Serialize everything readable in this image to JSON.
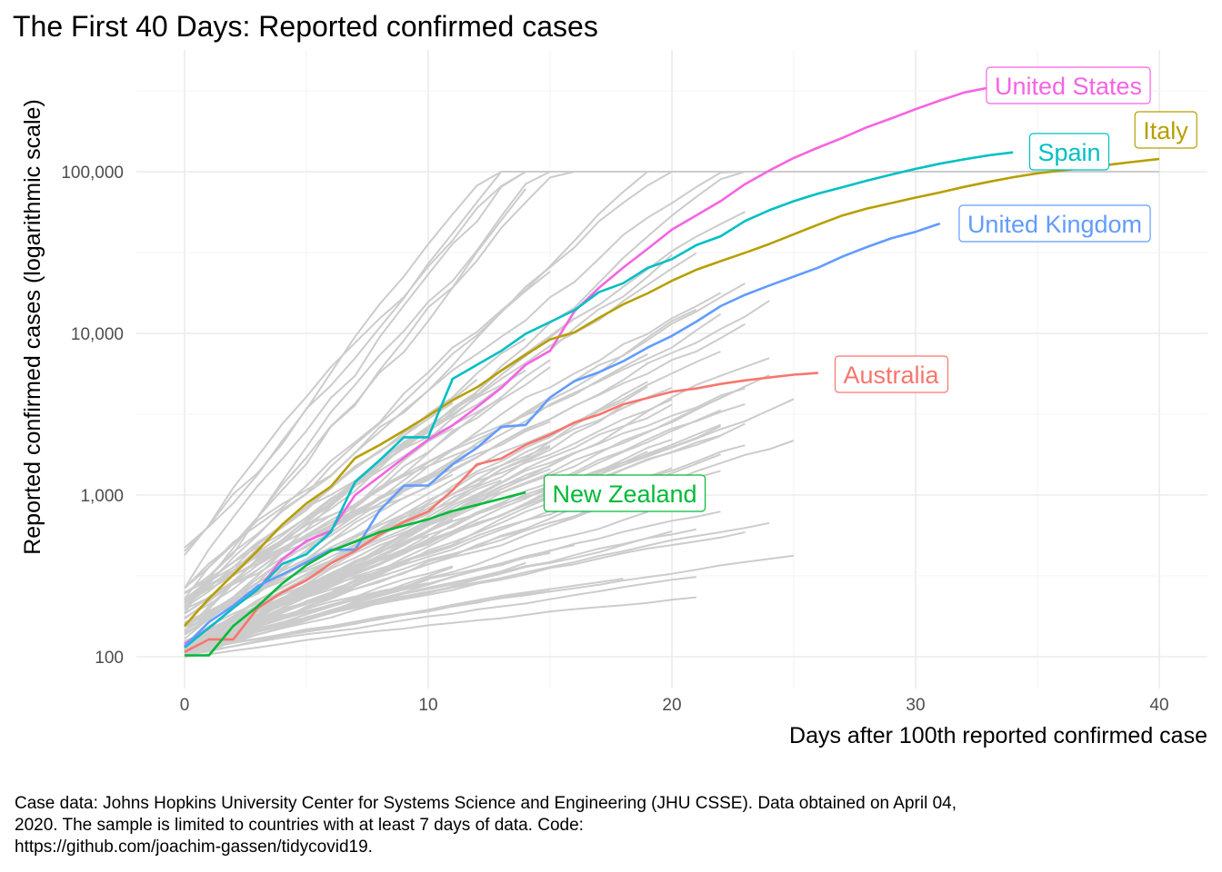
{
  "chart_data": {
    "type": "line",
    "title": "The First 40 Days: Reported confirmed cases",
    "xlabel": "Days after 100th reported confirmed case",
    "ylabel": "Reported confirmed cases (logarithmic scale)",
    "caption": [
      "Case data: Johns Hopkins University Center for Systems Science and Engineering (JHU CSSE). Data obtained on April 04,",
      "2020. The sample is limited to countries with at least 7 days of data. Code:",
      "https://github.com/joachim-gassen/tidycovid19."
    ],
    "y_scale": "log10",
    "xlim": [
      -2,
      42
    ],
    "ylim": [
      75,
      520000
    ],
    "x_ticks": [
      0,
      10,
      20,
      30,
      40
    ],
    "x_tick_labels": [
      "0",
      "10",
      "20",
      "30",
      "40"
    ],
    "y_ticks": [
      100,
      1000,
      10000,
      100000
    ],
    "y_tick_labels": [
      "100",
      "1,000",
      "10,000",
      "100,000"
    ],
    "grid": true,
    "legend": "none (direct labels at line ends)",
    "background_series_color": "#cccccc",
    "highlighted_series": [
      {
        "name": "United States",
        "color": "#f564e3",
        "x": [
          0,
          1,
          2,
          3,
          4,
          5,
          6,
          7,
          8,
          9,
          10,
          11,
          12,
          13,
          14,
          15,
          16,
          17,
          18,
          19,
          20,
          21,
          22,
          23,
          24,
          25,
          26,
          27,
          28,
          29,
          30,
          31,
          32,
          33
        ],
        "y": [
          120,
          150,
          200,
          260,
          400,
          520,
          600,
          1000,
          1300,
          1700,
          2200,
          2700,
          3500,
          4600,
          6400,
          7800,
          13700,
          19100,
          25500,
          33300,
          43800,
          53700,
          65800,
          83800,
          101700,
          121500,
          140900,
          161800,
          188200,
          213400,
          243600,
          275600,
          308800,
          331000
        ]
      },
      {
        "name": "Italy",
        "color": "#b79f00",
        "x": [
          0,
          1,
          2,
          3,
          4,
          5,
          6,
          7,
          8,
          9,
          10,
          11,
          12,
          13,
          14,
          15,
          16,
          17,
          18,
          19,
          20,
          21,
          22,
          23,
          24,
          25,
          26,
          27,
          28,
          29,
          30,
          31,
          32,
          33,
          34,
          35,
          36,
          37,
          38,
          39,
          40
        ],
        "y": [
          155,
          229,
          322,
          453,
          655,
          888,
          1128,
          1694,
          2036,
          2502,
          3089,
          3858,
          4636,
          5883,
          7375,
          9172,
          10149,
          12462,
          15113,
          17660,
          21157,
          24747,
          27980,
          31506,
          35713,
          41035,
          47021,
          53578,
          59138,
          63927,
          69176,
          74386,
          80589,
          86498,
          92472,
          97689,
          101739,
          105792,
          110574,
          115242,
          119827
        ]
      },
      {
        "name": "Spain",
        "color": "#00bfc4",
        "x": [
          0,
          1,
          2,
          3,
          4,
          5,
          6,
          7,
          8,
          9,
          10,
          11,
          12,
          13,
          14,
          15,
          16,
          17,
          18,
          19,
          20,
          21,
          22,
          23,
          24,
          25,
          26,
          27,
          28,
          29,
          30,
          31,
          32,
          33,
          34
        ],
        "y": [
          114,
          151,
          200,
          261,
          374,
          430,
          589,
          1204,
          1639,
          2277,
          2277,
          5232,
          6391,
          7798,
          9942,
          11748,
          13910,
          17963,
          20410,
          25374,
          28768,
          35136,
          39885,
          49515,
          57786,
          65719,
          73235,
          80110,
          87956,
          95923,
          104118,
          112065,
          119199,
          126168,
          131646
        ]
      },
      {
        "name": "United Kingdom",
        "color": "#619cff",
        "x": [
          0,
          1,
          2,
          3,
          4,
          5,
          6,
          7,
          8,
          9,
          10,
          11,
          12,
          13,
          14,
          15,
          16,
          17,
          18,
          19,
          20,
          21,
          22,
          23,
          24,
          25,
          26,
          27,
          28,
          29,
          30,
          31
        ],
        "y": [
          116,
          164,
          207,
          274,
          322,
          384,
          459,
          459,
          802,
          1144,
          1145,
          1551,
          1960,
          2642,
          2716,
          4014,
          5067,
          5745,
          6726,
          8164,
          9640,
          11812,
          14745,
          17312,
          19780,
          22453,
          25481,
          29865,
          34173,
          38689,
          42477,
          47806
        ]
      },
      {
        "name": "Australia",
        "color": "#f8766d",
        "x": [
          0,
          1,
          2,
          3,
          4,
          5,
          6,
          7,
          8,
          9,
          10,
          11,
          12,
          13,
          14,
          15,
          16,
          17,
          18,
          19,
          20,
          21,
          22,
          23,
          24,
          25,
          26
        ],
        "y": [
          107,
          128,
          128,
          200,
          250,
          297,
          377,
          452,
          568,
          681,
          791,
          1071,
          1549,
          1682,
          2044,
          2364,
          2810,
          3143,
          3640,
          3984,
          4361,
          4559,
          4862,
          5116,
          5330,
          5550,
          5687
        ]
      },
      {
        "name": "New Zealand",
        "color": "#00ba38",
        "x": [
          0,
          1,
          2,
          3,
          4,
          5,
          6,
          7,
          8,
          9,
          10,
          11,
          12,
          13,
          14
        ],
        "y": [
          102,
          102,
          155,
          205,
          283,
          368,
          451,
          514,
          589,
          647,
          708,
          797,
          868,
          950,
          1039
        ]
      }
    ],
    "label_positions": "at the end of each highlighted line"
  }
}
